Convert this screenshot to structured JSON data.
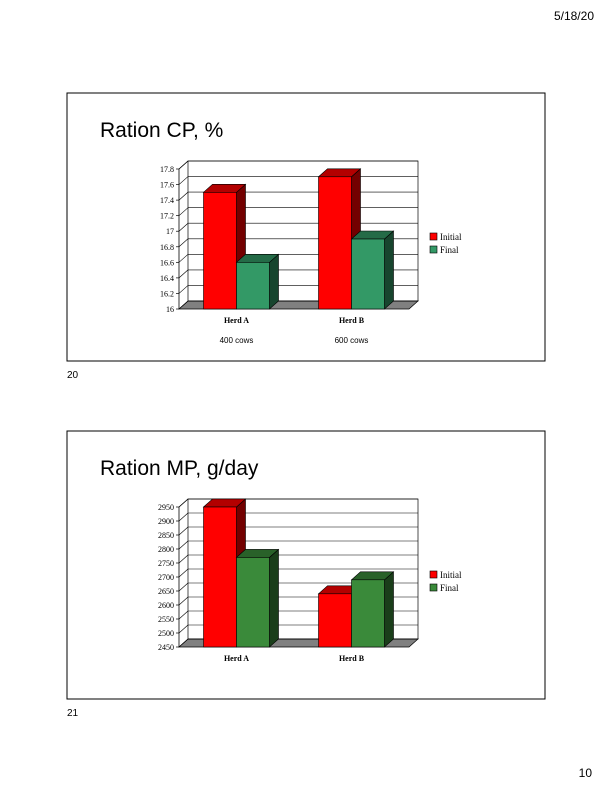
{
  "header": {
    "date": "5/18/20"
  },
  "slide_numbers": [
    "20",
    "21"
  ],
  "page_number": "10",
  "chart_data": [
    {
      "type": "bar3d",
      "title": "Ration CP, %",
      "categories": [
        "Herd A",
        "Herd B"
      ],
      "category_notes": [
        "400 cows",
        "600 cows"
      ],
      "series": [
        {
          "name": "Initial",
          "color": "#ff0000",
          "values": [
            17.5,
            17.7
          ]
        },
        {
          "name": "Final",
          "color": "#339966",
          "values": [
            16.6,
            16.9
          ]
        }
      ],
      "ylim": [
        16,
        17.8
      ],
      "yticks": [
        16,
        16.2,
        16.4,
        16.6,
        16.8,
        17,
        17.2,
        17.4,
        17.6,
        17.8
      ],
      "grid": true,
      "legend": "right"
    },
    {
      "type": "bar3d",
      "title": "Ration MP, g/day",
      "categories": [
        "Herd A",
        "Herd B"
      ],
      "series": [
        {
          "name": "Initial",
          "color": "#ff0000",
          "values": [
            2950,
            2640
          ]
        },
        {
          "name": "Final",
          "color": "#3a8a3a",
          "values": [
            2770,
            2690
          ]
        }
      ],
      "ylim": [
        2450,
        2950
      ],
      "yticks": [
        2450,
        2500,
        2550,
        2600,
        2650,
        2700,
        2750,
        2800,
        2850,
        2900,
        2950
      ],
      "grid": true,
      "legend": "right"
    }
  ]
}
